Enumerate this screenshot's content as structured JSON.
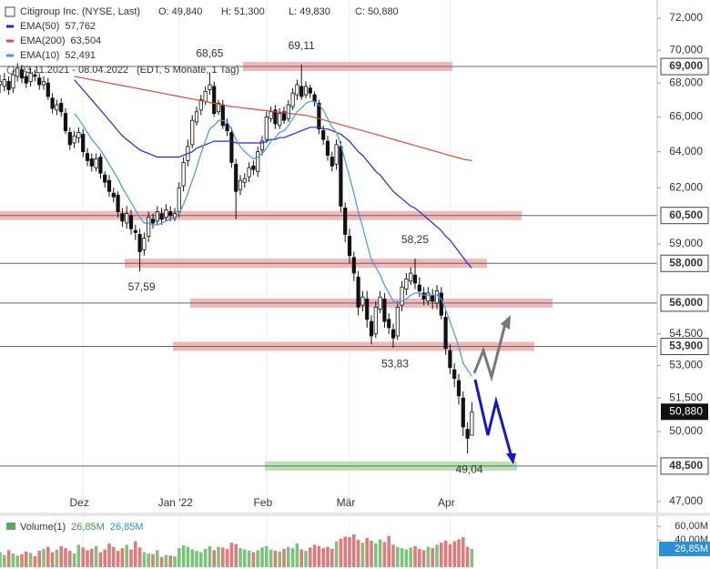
{
  "chart_data": {
    "type": "candlestick",
    "title": "Citigroup Inc. (NYSE, Last)",
    "ohlc_header": [
      "O: 49,840",
      "H: 51,300",
      "L: 49,830",
      "C: 50,880"
    ],
    "date_range": "03.11.2021 - 08.04.2022",
    "period": "(EDT, 5 Monate, 1 Tag)",
    "log_scale": true,
    "ylim": [
      46550,
      73170
    ],
    "yticks": [
      {
        "value": 72000,
        "label": "72,000"
      },
      {
        "value": 70000,
        "label": "70,000"
      },
      {
        "value": 68000,
        "label": "68,000"
      },
      {
        "value": 66000,
        "label": "66,000"
      },
      {
        "value": 64000,
        "label": "64,000"
      },
      {
        "value": 62000,
        "label": "62,000"
      },
      {
        "value": 59000,
        "label": "59,000"
      },
      {
        "value": 54500,
        "label": "54,500"
      },
      {
        "value": 53000,
        "label": "53,000"
      },
      {
        "value": 51500,
        "label": "51,500"
      },
      {
        "value": 50000,
        "label": "50,000"
      },
      {
        "value": 47000,
        "label": "47,000"
      }
    ],
    "categories": [
      null,
      null,
      null,
      null,
      null,
      null,
      null,
      null,
      null,
      null,
      null,
      null,
      null,
      null,
      null,
      null,
      null,
      null,
      null,
      "Dez",
      null,
      null,
      null,
      null,
      null,
      null,
      null,
      null,
      null,
      null,
      null,
      null,
      null,
      null,
      null,
      null,
      null,
      null,
      null,
      null,
      null,
      "Jan '22",
      null,
      null,
      null,
      null,
      null,
      null,
      null,
      null,
      null,
      null,
      null,
      null,
      null,
      null,
      null,
      null,
      null,
      null,
      null,
      "Feb",
      null,
      null,
      null,
      null,
      null,
      null,
      null,
      null,
      null,
      null,
      null,
      null,
      null,
      null,
      null,
      null,
      null,
      null,
      "Mär",
      null,
      null,
      null,
      null,
      null,
      null,
      null,
      null,
      null,
      null,
      null,
      null,
      null,
      null,
      null,
      null,
      null,
      null,
      null,
      null,
      null,
      null,
      "Apr",
      null,
      null,
      null,
      null,
      null
    ],
    "candle_colors": {
      "up": "#ffffff",
      "down": "#111111"
    },
    "open": [
      67900,
      67800,
      68100,
      67700,
      68400,
      68800,
      68400,
      68100,
      68500,
      68300,
      67900,
      68000,
      67100,
      66400,
      66800,
      66200,
      65100,
      64500,
      64800,
      65000,
      63900,
      63600,
      63100,
      63700,
      62700,
      62400,
      61700,
      61600,
      60600,
      60100,
      60500,
      59700,
      59500,
      58700,
      59400,
      60300,
      60200,
      60600,
      60400,
      60700,
      60400,
      60700,
      62100,
      63500,
      64400,
      65700,
      66400,
      66900,
      67600,
      67800,
      66300,
      66700,
      65600,
      65100,
      63300,
      61900,
      62300,
      62600,
      63200,
      62900,
      64100,
      64700,
      65900,
      66400,
      65500,
      66300,
      65900,
      66600,
      67300,
      67800,
      67300,
      67700,
      67300,
      66800,
      65200,
      64600,
      63700,
      63300,
      64300,
      60900,
      59400,
      58300,
      57300,
      55900,
      56200,
      55100,
      54500,
      55700,
      56200,
      55200,
      54700,
      54400,
      55900,
      56700,
      57100,
      57400,
      56900,
      56500,
      56100,
      56400,
      56000,
      56500,
      55300,
      53700,
      52800,
      52300,
      51500,
      50100,
      49840
    ],
    "high": [
      68500,
      68600,
      68400,
      68800,
      69200,
      69100,
      68700,
      68900,
      68800,
      68600,
      68400,
      68300,
      67400,
      67000,
      67100,
      66500,
      65400,
      65200,
      65400,
      65300,
      64200,
      63900,
      63900,
      63900,
      62900,
      62700,
      62000,
      61800,
      60900,
      61000,
      60800,
      60000,
      59800,
      59600,
      60700,
      60600,
      61000,
      60900,
      61100,
      61000,
      60900,
      62300,
      63700,
      64700,
      66100,
      66600,
      67300,
      67800,
      68650,
      68100,
      67000,
      67000,
      65900,
      65400,
      63600,
      62700,
      62800,
      63400,
      63500,
      64300,
      64900,
      66300,
      66600,
      66700,
      66500,
      66600,
      67000,
      67700,
      68200,
      69110,
      68100,
      67900,
      67500,
      67000,
      65500,
      64900,
      64000,
      64700,
      64600,
      61200,
      59800,
      58600,
      57600,
      56600,
      56600,
      55400,
      56100,
      56600,
      56500,
      55500,
      55000,
      56100,
      57100,
      57500,
      57800,
      58250,
      57300,
      56800,
      56800,
      56700,
      56900,
      56800,
      55600,
      54000,
      53100,
      52600,
      51800,
      50400,
      51300
    ],
    "low": [
      67400,
      67500,
      67300,
      67400,
      68100,
      68000,
      67700,
      67800,
      68100,
      67600,
      67600,
      67000,
      66200,
      66100,
      66000,
      65000,
      64100,
      64200,
      64500,
      63700,
      63200,
      62900,
      62900,
      62500,
      62000,
      61500,
      61200,
      60400,
      59900,
      59800,
      59500,
      59200,
      57590,
      58400,
      59100,
      59800,
      60000,
      60000,
      60200,
      60200,
      60200,
      60400,
      61800,
      63200,
      64200,
      65500,
      66100,
      66700,
      67300,
      66000,
      66100,
      65300,
      64900,
      63100,
      60300,
      61600,
      62000,
      62300,
      62700,
      62600,
      63800,
      64500,
      65700,
      65300,
      65300,
      65600,
      65700,
      66400,
      67000,
      67000,
      67100,
      67100,
      66600,
      65000,
      64400,
      63500,
      62900,
      63000,
      60700,
      59100,
      58000,
      57100,
      55400,
      55600,
      54800,
      54000,
      54300,
      55500,
      54800,
      54500,
      53830,
      54200,
      55600,
      56400,
      56900,
      56700,
      56300,
      55900,
      55900,
      55700,
      55700,
      55200,
      53500,
      52600,
      52000,
      51200,
      49800,
      49040,
      49830
    ],
    "close": [
      68100,
      68200,
      67600,
      68500,
      68900,
      68300,
      68000,
      68600,
      68400,
      67900,
      68100,
      67200,
      66500,
      66700,
      66300,
      65200,
      64400,
      64900,
      65100,
      64000,
      63500,
      63200,
      63600,
      62800,
      62300,
      61800,
      61500,
      60700,
      60200,
      60600,
      59800,
      59600,
      58600,
      59300,
      60400,
      60100,
      60700,
      60300,
      60800,
      60500,
      60600,
      62000,
      63400,
      64300,
      65800,
      66300,
      67000,
      67500,
      67900,
      66200,
      66800,
      65500,
      65200,
      63400,
      61800,
      62400,
      62500,
      63100,
      63000,
      64000,
      64600,
      66000,
      66300,
      65600,
      66200,
      65800,
      66700,
      67400,
      67900,
      67200,
      67800,
      67400,
      66900,
      65300,
      64700,
      63800,
      63200,
      64400,
      61000,
      59500,
      58400,
      57500,
      55800,
      56300,
      55200,
      54400,
      55800,
      56300,
      55100,
      54800,
      54300,
      55800,
      56800,
      57200,
      57500,
      57000,
      56600,
      56200,
      56500,
      56100,
      56600,
      55400,
      53800,
      52900,
      52400,
      51600,
      50200,
      49700,
      50880
    ],
    "series": [
      {
        "name": "EMA(50)",
        "color": "#1a2cd6",
        "legend_value": "57,762",
        "values": [
          null,
          null,
          null,
          null,
          null,
          null,
          null,
          null,
          null,
          null,
          null,
          null,
          null,
          null,
          null,
          null,
          null,
          68200,
          67900,
          67600,
          67300,
          67000,
          66700,
          66400,
          66100,
          65800,
          65500,
          65200,
          64900,
          64700,
          64500,
          64300,
          64100,
          64000,
          63900,
          63800,
          63700,
          63700,
          63700,
          63700,
          63700,
          63700,
          63800,
          63900,
          64000,
          64200,
          64300,
          64400,
          64500,
          64600,
          64600,
          64600,
          64600,
          64600,
          64500,
          64500,
          64500,
          64500,
          64500,
          64500,
          64500,
          64600,
          64700,
          64700,
          64800,
          64800,
          64900,
          65000,
          65100,
          65200,
          65300,
          65400,
          65400,
          65400,
          65300,
          65300,
          65200,
          65100,
          65000,
          64800,
          64600,
          64300,
          64000,
          63800,
          63500,
          63200,
          62900,
          62700,
          62400,
          62100,
          61800,
          61600,
          61400,
          61200,
          61000,
          60900,
          60700,
          60500,
          60300,
          60100,
          59900,
          59700,
          59400,
          59200,
          58900,
          58600,
          58300,
          58000,
          57762
        ]
      },
      {
        "name": "EMA(200)",
        "color": "#e8473a",
        "legend_value": "63,504",
        "values": [
          null,
          null,
          null,
          null,
          null,
          null,
          null,
          null,
          null,
          null,
          null,
          null,
          null,
          null,
          null,
          null,
          null,
          68400,
          68350,
          68300,
          68250,
          68200,
          68150,
          68100,
          68050,
          68000,
          67950,
          67900,
          67850,
          67800,
          67750,
          67700,
          67650,
          67600,
          67550,
          67500,
          67450,
          67400,
          67350,
          67300,
          67250,
          67200,
          67150,
          67100,
          67050,
          67000,
          66950,
          66900,
          66850,
          66800,
          66750,
          66700,
          66650,
          66600,
          66570,
          66540,
          66510,
          66480,
          66450,
          66420,
          66390,
          66360,
          66330,
          66300,
          66270,
          66240,
          66210,
          66180,
          66150,
          66120,
          66090,
          66030,
          65970,
          65900,
          65830,
          65760,
          65690,
          65620,
          65550,
          65480,
          65410,
          65340,
          65270,
          65200,
          65130,
          65060,
          64990,
          64920,
          64850,
          64780,
          64700,
          64630,
          64560,
          64490,
          64420,
          64350,
          64280,
          64210,
          64140,
          64070,
          64000,
          63930,
          63860,
          63790,
          63720,
          63650,
          63580,
          63540,
          63504
        ]
      },
      {
        "name": "EMA(10)",
        "color": "#3d9be9",
        "legend_value": "52,491",
        "values": [
          null,
          null,
          null,
          null,
          null,
          null,
          null,
          null,
          null,
          null,
          null,
          null,
          null,
          null,
          null,
          null,
          null,
          66200,
          65900,
          65500,
          65100,
          64700,
          64400,
          64100,
          63700,
          63300,
          62900,
          62500,
          62000,
          61600,
          61200,
          60800,
          60400,
          60100,
          60100,
          60000,
          60000,
          60100,
          60200,
          60300,
          60400,
          60600,
          61100,
          61700,
          62400,
          63100,
          63900,
          64600,
          65300,
          65500,
          65800,
          65800,
          65700,
          65300,
          64700,
          64300,
          64000,
          63800,
          63600,
          63700,
          63900,
          64200,
          64600,
          64800,
          65100,
          65200,
          65500,
          65900,
          66300,
          66500,
          66800,
          66900,
          66900,
          66700,
          66400,
          65900,
          65400,
          65100,
          64400,
          63500,
          62600,
          61700,
          60700,
          59900,
          59000,
          58200,
          57800,
          57400,
          56900,
          56500,
          56100,
          56000,
          56100,
          56200,
          56400,
          56500,
          56500,
          56400,
          56400,
          56400,
          56400,
          56200,
          55700,
          55100,
          54500,
          53900,
          53100,
          52800,
          52491
        ]
      }
    ],
    "levels": [
      {
        "value": 69000,
        "label": "69,000",
        "color": "#f2b8b8"
      },
      {
        "value": 60500,
        "label": "60,500",
        "color": "#f2b8b8"
      },
      {
        "value": 58000,
        "label": "58,000",
        "color": "#f2b8b8"
      },
      {
        "value": 56000,
        "label": "56,000",
        "color": "#f2b8b8"
      },
      {
        "value": 53900,
        "label": "53,900",
        "color": "#f2b8b8"
      },
      {
        "value": 48500,
        "label": "48,500",
        "color": "#b8e3b3"
      }
    ],
    "annotations": [
      {
        "label": "68,65",
        "value": 68650
      },
      {
        "label": "69,11",
        "value": 69110
      },
      {
        "label": "57,59",
        "value": 57590
      },
      {
        "label": "58,25",
        "value": 58250
      },
      {
        "label": "53,83",
        "value": 53830
      },
      {
        "label": "49,04",
        "value": 49040
      }
    ],
    "last_price": {
      "value": 50880,
      "label": "50,880"
    },
    "volume": {
      "name": "Volume(1)",
      "legend_values": [
        "26,85M",
        "26,85M"
      ],
      "colors": {
        "up": "#7cc47c",
        "down": "#e07b7b"
      },
      "ylim": [
        0,
        75
      ],
      "yticks": [
        {
          "value": 60,
          "label": "60,00M"
        },
        {
          "value": 40,
          "label": "40,00M"
        }
      ],
      "last": {
        "value": 26.85,
        "label": "26,85M"
      },
      "values": [
        22,
        18,
        25,
        20,
        17,
        19,
        23,
        21,
        16,
        24,
        27,
        30,
        22,
        26,
        31,
        28,
        24,
        20,
        33,
        29,
        25,
        27,
        31,
        22,
        26,
        35,
        30,
        24,
        28,
        33,
        26,
        38,
        29,
        22,
        20,
        19,
        25,
        15,
        18,
        17,
        16,
        28,
        32,
        30,
        26,
        24,
        22,
        27,
        31,
        25,
        30,
        29,
        27,
        36,
        34,
        28,
        26,
        24,
        22,
        25,
        29,
        31,
        26,
        24,
        23,
        27,
        30,
        28,
        35,
        26,
        24,
        29,
        33,
        31,
        28,
        30,
        27,
        38,
        42,
        45,
        44,
        48,
        40,
        36,
        43,
        39,
        35,
        41,
        37,
        46,
        33,
        30,
        28,
        26,
        29,
        31,
        27,
        25,
        30,
        28,
        33,
        36,
        39,
        34,
        38,
        41,
        44,
        30,
        26.85
      ]
    }
  }
}
